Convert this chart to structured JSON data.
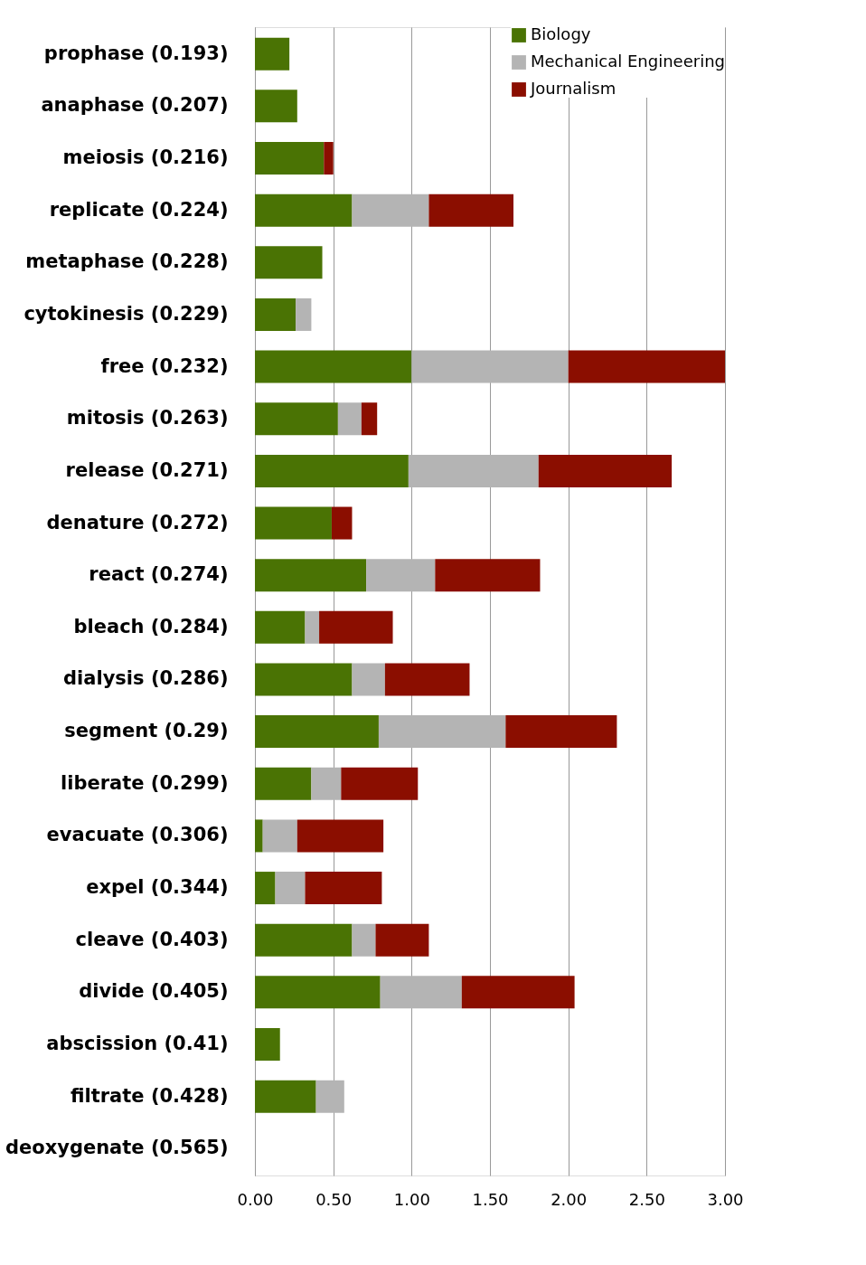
{
  "chart_data": {
    "type": "bar",
    "orientation": "horizontal",
    "stacked": true,
    "categories": [
      "prophase (0.193)",
      "anaphase (0.207)",
      "meiosis (0.216)",
      "replicate (0.224)",
      "metaphase (0.228)",
      "cytokinesis (0.229)",
      "free (0.232)",
      "mitosis (0.263)",
      "release (0.271)",
      "denature (0.272)",
      "react (0.274)",
      "bleach (0.284)",
      "dialysis (0.286)",
      "segment (0.29)",
      "liberate (0.299)",
      "evacuate (0.306)",
      "expel (0.344)",
      "cleave (0.403)",
      "divide (0.405)",
      "abscission (0.41)",
      "filtrate (0.428)",
      "deoxygenate (0.565)"
    ],
    "series": [
      {
        "name": "Biology",
        "color": "#4a7304",
        "values": [
          0.22,
          0.27,
          0.44,
          0.62,
          0.43,
          0.26,
          1.0,
          0.53,
          0.98,
          0.49,
          0.71,
          0.32,
          0.62,
          0.79,
          0.36,
          0.05,
          0.13,
          0.62,
          0.8,
          0.16,
          0.39,
          null
        ]
      },
      {
        "name": "Mechanical Engineering",
        "color": "#b4b4b4",
        "values": [
          null,
          null,
          null,
          0.49,
          null,
          0.1,
          1.0,
          0.15,
          0.83,
          null,
          0.44,
          0.09,
          0.21,
          0.81,
          0.19,
          0.22,
          0.19,
          0.15,
          0.52,
          null,
          0.18,
          null
        ]
      },
      {
        "name": "Journalism",
        "color": "#8b0e00",
        "values": [
          null,
          null,
          0.06,
          0.54,
          null,
          null,
          1.0,
          0.1,
          0.85,
          0.13,
          0.67,
          0.47,
          0.54,
          0.71,
          0.49,
          0.55,
          0.49,
          0.34,
          0.72,
          null,
          null,
          null
        ]
      }
    ],
    "xlim": [
      0,
      3
    ],
    "xticks": [
      {
        "value": 0,
        "label": "0.00"
      },
      {
        "value": 0.5,
        "label": "0.50"
      },
      {
        "value": 1,
        "label": "1.00"
      },
      {
        "value": 1.5,
        "label": "1.50"
      },
      {
        "value": 2,
        "label": "2.00"
      },
      {
        "value": 2.5,
        "label": "2.50"
      },
      {
        "value": 3,
        "label": "3.00"
      }
    ],
    "grid": "x",
    "legend": "top right"
  }
}
